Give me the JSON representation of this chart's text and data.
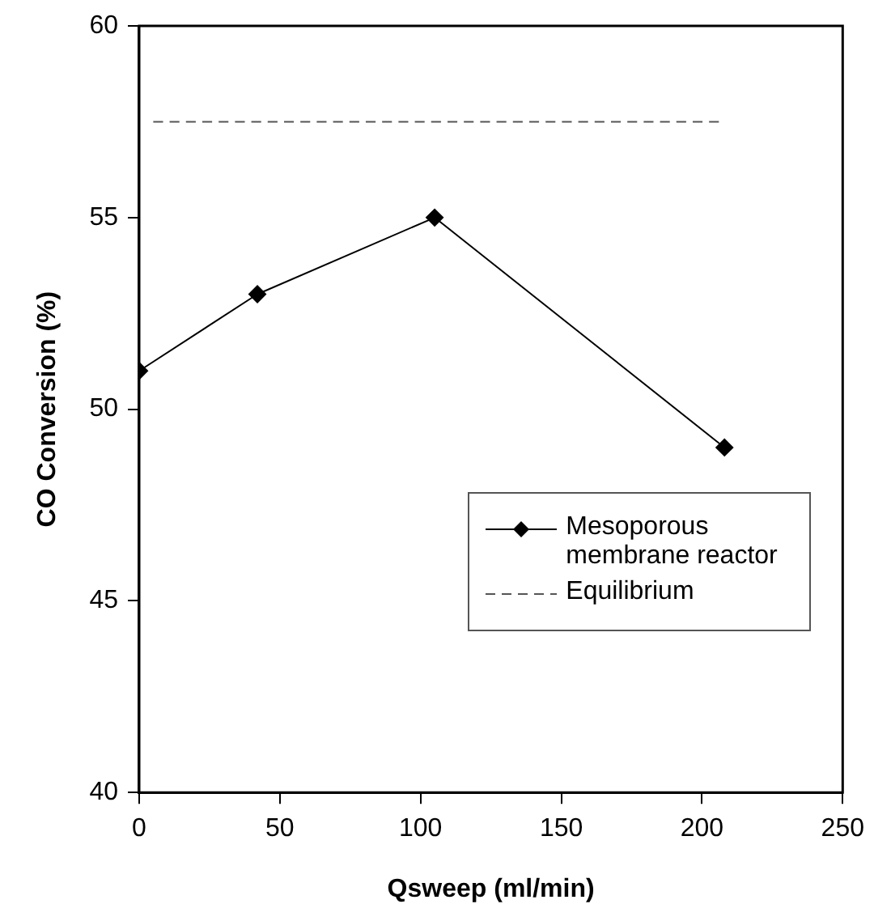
{
  "chart_data": {
    "type": "line",
    "xlabel": "Qsweep (ml/min)",
    "ylabel": "CO Conversion (%)",
    "xlim": [
      0,
      250
    ],
    "xticks": [
      0,
      50,
      100,
      150,
      200,
      250
    ],
    "ylim": [
      40,
      60
    ],
    "yticks": [
      40,
      45,
      50,
      55,
      60
    ],
    "grid": false,
    "legend": "bottom right",
    "series": [
      {
        "name": "Mesoporous membrane reactor",
        "color": "#000000",
        "x": [
          0,
          42,
          105,
          208
        ],
        "values": [
          51,
          53,
          55,
          49
        ],
        "marker": "diamond",
        "line_style": "solid"
      },
      {
        "name": "Equilibrium",
        "color": "#555555",
        "x": [
          5,
          206
        ],
        "values": [
          57.5,
          57.5
        ],
        "marker": "none",
        "line_style": "dashed"
      }
    ]
  }
}
